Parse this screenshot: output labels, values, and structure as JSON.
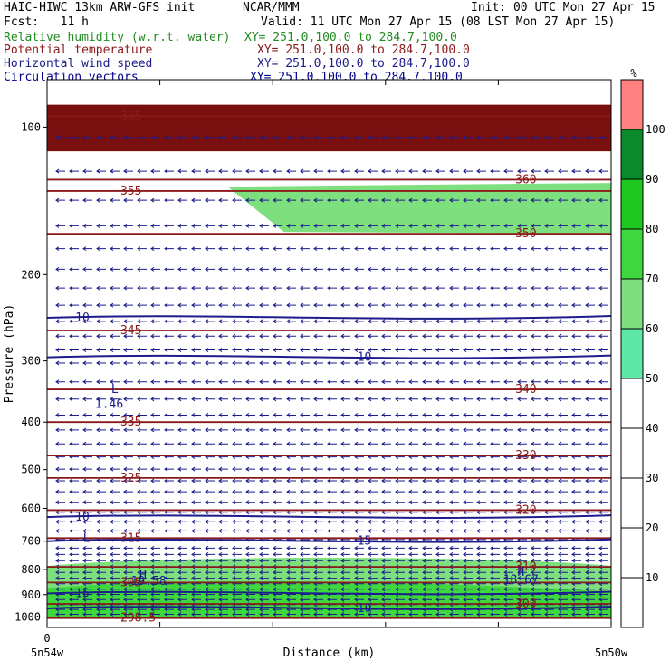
{
  "header": {
    "model": "HAIC-HIWC 13km ARW-GFS init",
    "org": "NCAR/MMM",
    "init": "Init: 00 UTC Mon 27 Apr 15",
    "fcst": "Fcst:   11 h",
    "valid": "Valid: 11 UTC Mon 27 Apr 15 (08 LST Mon 27 Apr 15)",
    "fields": [
      {
        "name": "Relative humidity (w.r.t. water)",
        "xy": "XY= 251.0,100.0 to 284.7,100.0",
        "color": "#228b22"
      },
      {
        "name": "Potential temperature",
        "xy": "XY= 251.0,100.0 to 284.7,100.0",
        "color": "#8b1a1a"
      },
      {
        "name": "Horizontal wind speed",
        "xy": "XY= 251.0,100.0 to 284.7,100.0",
        "color": "#1c1c8c"
      },
      {
        "name": "Circulation vectors",
        "xy": "XY= 251.0,100.0 to 284.7,100.0",
        "color": "#00008b"
      }
    ]
  },
  "chart_data": {
    "type": "heatmap",
    "xlabel": "Distance (km)",
    "ylabel": "Pressure (hPa)",
    "x_tick_labels": [
      "0"
    ],
    "x_end_labels": [
      "5n54w",
      "5n50w"
    ],
    "y_ticks": [
      100,
      200,
      300,
      400,
      500,
      600,
      700,
      800,
      900,
      1000
    ],
    "ylim": [
      1050,
      80
    ],
    "y_scale": "log",
    "colorbar": {
      "unit": "%",
      "levels": [
        10,
        20,
        30,
        40,
        50,
        60,
        70,
        80,
        90,
        100
      ],
      "fills": [
        {
          "range": [
            0,
            50
          ],
          "color": "#ffffff"
        },
        {
          "range": [
            50,
            60
          ],
          "color": "#5de8a8"
        },
        {
          "range": [
            60,
            70
          ],
          "color": "#7ddf7d"
        },
        {
          "range": [
            70,
            80
          ],
          "color": "#3ed83e"
        },
        {
          "range": [
            80,
            90
          ],
          "color": "#1ec81e"
        },
        {
          "range": [
            90,
            100
          ],
          "color": "#0a8a2a"
        },
        {
          "range": [
            100,
            110
          ],
          "color": "#ff8080"
        }
      ]
    },
    "rh_regions": [
      {
        "name": "upper-saturated-band",
        "pressure": [
          90,
          112
        ],
        "value": 100
      },
      {
        "name": "upper-moist-layer",
        "pressure": [
          130,
          165
        ],
        "value": 60
      },
      {
        "name": "boundary-layer-moist",
        "pressure": [
          760,
          1000
        ],
        "value": 60
      },
      {
        "name": "boundary-layer-saturated",
        "pressure": [
          900,
          1000
        ],
        "value": 90
      }
    ],
    "theta_contours": [
      {
        "value": 335,
        "pressure": 95,
        "label": "335"
      },
      {
        "value": 360,
        "pressure": 128,
        "label": "360"
      },
      {
        "value": 355,
        "pressure": 135,
        "label": "355"
      },
      {
        "value": 350,
        "pressure": 165,
        "label": "350"
      },
      {
        "value": 345,
        "pressure": 260,
        "label": "345"
      },
      {
        "value": 340,
        "pressure": 343,
        "label": "340"
      },
      {
        "value": 335,
        "pressure": 400,
        "label": "335"
      },
      {
        "value": 330,
        "pressure": 468,
        "label": "330"
      },
      {
        "value": 325,
        "pressure": 520,
        "label": "325"
      },
      {
        "value": 320,
        "pressure": 605,
        "label": "320"
      },
      {
        "value": 315,
        "pressure": 690,
        "label": "315"
      },
      {
        "value": 310,
        "pressure": 790,
        "label": "310"
      },
      {
        "value": 305,
        "pressure": 850,
        "label": "305"
      },
      {
        "value": 300,
        "pressure": 940,
        "label": "300"
      },
      {
        "value": 298.5,
        "pressure": 1005,
        "label": "298.5"
      }
    ],
    "wind_contours": [
      {
        "value": 10,
        "pressure": 245,
        "label": "10"
      },
      {
        "value": 10,
        "pressure": 295,
        "label": "10"
      },
      {
        "value": 10,
        "pressure": 625,
        "label": "10"
      },
      {
        "value": 15,
        "pressure": 700,
        "label": "15"
      },
      {
        "value": 15,
        "pressure": 895,
        "label": "15"
      },
      {
        "value": 10,
        "pressure": 960,
        "label": "10"
      }
    ],
    "annotations": [
      {
        "text": "L",
        "x_frac": 0.12,
        "pressure": 343
      },
      {
        "text": "1.46",
        "x_frac": 0.11,
        "pressure": 368
      },
      {
        "text": "H",
        "x_frac": 0.17,
        "pressure": 820
      },
      {
        "text": "19.58",
        "x_frac": 0.18,
        "pressure": 845
      },
      {
        "text": "H",
        "x_frac": 0.84,
        "pressure": 810
      },
      {
        "text": "18.67",
        "x_frac": 0.84,
        "pressure": 840
      },
      {
        "text": "L",
        "x_frac": 0.07,
        "pressure": 690
      }
    ]
  }
}
